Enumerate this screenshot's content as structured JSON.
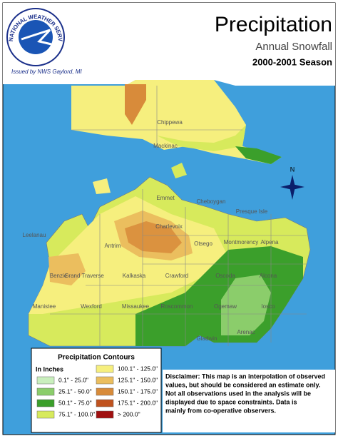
{
  "header": {
    "title": "Precipitation",
    "subtitle": "Annual Snowfall",
    "season": "2000-2001 Season",
    "issued": "Issued by NWS Gaylord, MI",
    "logo": "NATIONAL WEATHER SERVICE"
  },
  "compass": "N",
  "counties": [
    "Chippewa",
    "Mackinac",
    "Emmet",
    "Cheboygan",
    "Presque Isle",
    "Charlevoix",
    "Otsego",
    "Montmorency",
    "Alpena",
    "Leelanau",
    "Antrim",
    "Benzie",
    "Grand Traverse",
    "Kalkaska",
    "Crawford",
    "Oscoda",
    "Alcona",
    "Manistee",
    "Wexford",
    "Missaukee",
    "Roscommon",
    "Ogemaw",
    "Iosco",
    "Gladwin",
    "Arenac"
  ],
  "legend": {
    "title": "Precipitation Contours",
    "units": "In Inches",
    "items": [
      {
        "label": "0.1\" - 25.0\"",
        "color": "#c9efbd"
      },
      {
        "label": "25.1\" - 50.0\"",
        "color": "#8bcd6b"
      },
      {
        "label": "50.1\" - 75.0\"",
        "color": "#3b9f2b"
      },
      {
        "label": "75.1\" - 100.0\"",
        "color": "#d7ea5c"
      },
      {
        "label": "100.1\" - 125.0\"",
        "color": "#f6ef7e"
      },
      {
        "label": "125.1\" - 150.0\"",
        "color": "#ebbe5e"
      },
      {
        "label": "150.1\" - 175.0\"",
        "color": "#d88b3a"
      },
      {
        "label": "175.1\" - 200.0\"",
        "color": "#c0531f"
      },
      {
        "label": "> 200.0\"",
        "color": "#a01010"
      }
    ]
  },
  "disclaimer": [
    "Disclaimer: This map is an interpolation of observed",
    "values, but should be considered an estimate only.",
    "Not all observations used in the analysis will be",
    "displayed due to space constraints. Data is",
    "mainly from co-operative observers."
  ]
}
